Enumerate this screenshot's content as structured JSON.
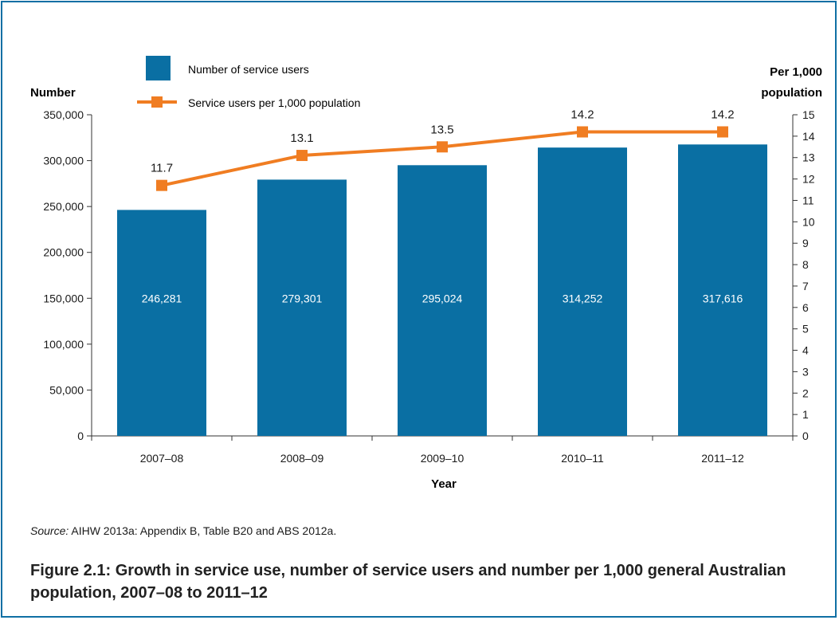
{
  "chart_data": {
    "type": "bar",
    "categories": [
      "2007–08",
      "2008–09",
      "2009–10",
      "2010–11",
      "2011–12"
    ],
    "series": [
      {
        "name": "Number of service users",
        "chart_type": "bar",
        "axis": "left",
        "values": [
          246281,
          279301,
          295024,
          314252,
          317616
        ],
        "data_labels": [
          "246,281",
          "279,301",
          "295,024",
          "314,252",
          "317,616"
        ],
        "color": "#0a6fa3"
      },
      {
        "name": "Service users per 1,000 population",
        "chart_type": "line",
        "axis": "right",
        "values": [
          11.7,
          13.1,
          13.5,
          14.2,
          14.2
        ],
        "data_labels": [
          "11.7",
          "13.1",
          "13.5",
          "14.2",
          "14.2"
        ],
        "color": "#f07d22"
      }
    ],
    "xlabel": "Year",
    "ylabel_left": "Number",
    "ylabel_right": "Per 1,000 population",
    "ylabel_right_lines": [
      "Per 1,000",
      "population"
    ],
    "ylim_left": [
      0,
      350000
    ],
    "ylim_right": [
      0,
      15
    ],
    "yticks_left": [
      0,
      50000,
      100000,
      150000,
      200000,
      250000,
      300000,
      350000
    ],
    "yticks_left_labels": [
      "0",
      "50,000",
      "100,000",
      "150,000",
      "200,000",
      "250,000",
      "300,000",
      "350,000"
    ],
    "yticks_right": [
      0,
      1,
      2,
      3,
      4,
      5,
      6,
      7,
      8,
      9,
      10,
      11,
      12,
      13,
      14,
      15
    ],
    "yticks_right_labels": [
      "0",
      "1",
      "2",
      "3",
      "4",
      "5",
      "6",
      "7",
      "8",
      "9",
      "10",
      "11",
      "12",
      "13",
      "14",
      "15"
    ],
    "grid": false,
    "legend_position": "top-left"
  },
  "source": {
    "label": "Source:",
    "text": " AIHW 2013a: Appendix B, Table B20 and ABS 2012a."
  },
  "caption": "Figure 2.1: Growth in service use, number of service users and number per 1,000 general Australian population, 2007–08 to 2011–12",
  "colors": {
    "frame": "#0f6fa4",
    "bar": "#0a6fa3",
    "line": "#f07d22"
  }
}
